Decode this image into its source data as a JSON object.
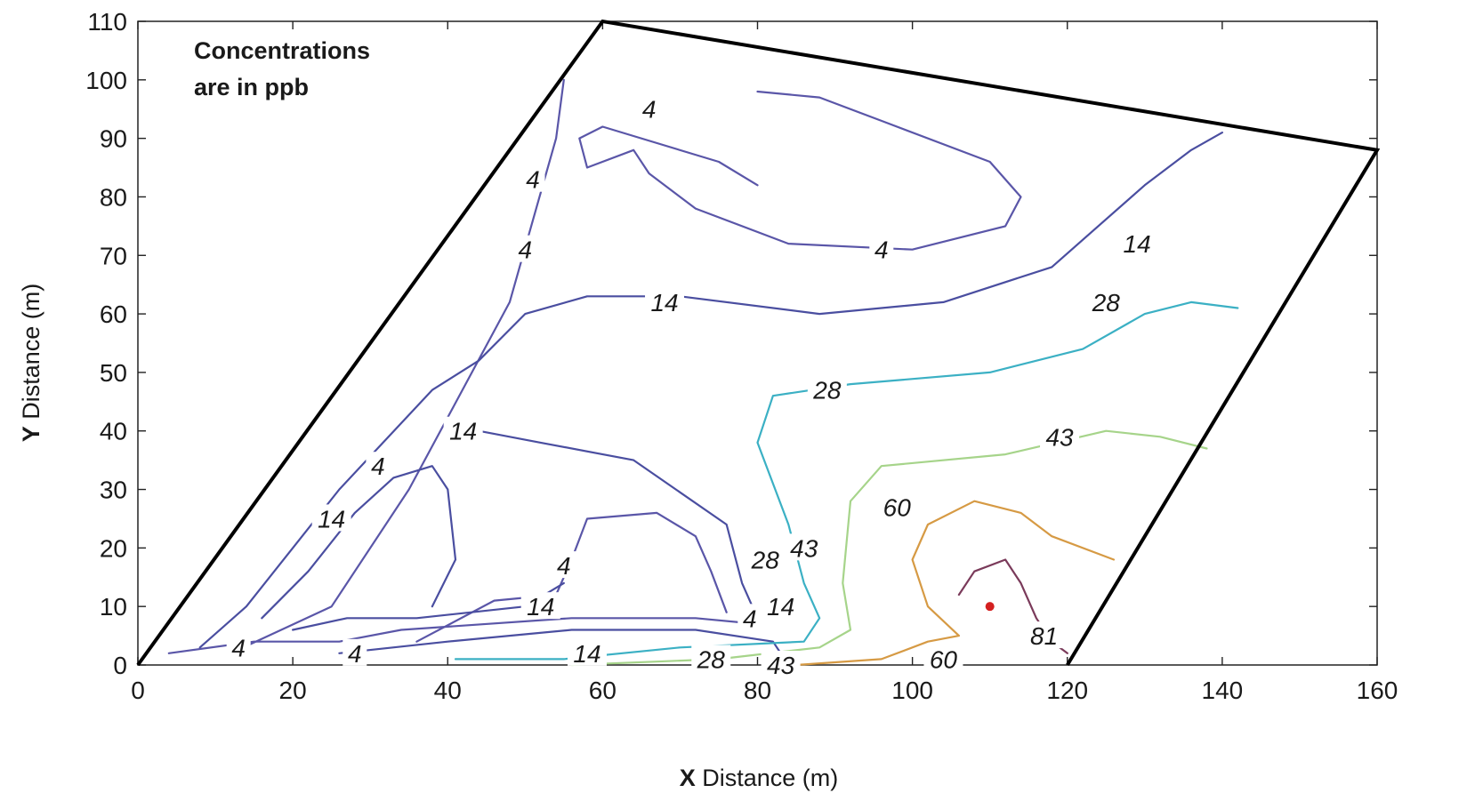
{
  "chart_data": {
    "type": "contour",
    "xlabel_bold": "X",
    "xlabel_rest": " Distance (m)",
    "ylabel_bold": "Y",
    "ylabel_rest": " Distance (m)",
    "xlim": [
      0,
      160
    ],
    "ylim": [
      0,
      110
    ],
    "xticks": [
      0,
      20,
      40,
      60,
      80,
      100,
      120,
      140,
      160
    ],
    "yticks": [
      0,
      10,
      20,
      30,
      40,
      50,
      60,
      70,
      80,
      90,
      100,
      110
    ],
    "annotation": [
      "Concentrations",
      "are in ppb"
    ],
    "grid": false,
    "domain_boundary": [
      [
        0,
        0
      ],
      [
        60,
        110
      ],
      [
        160,
        88
      ],
      [
        120,
        0
      ]
    ],
    "source_point": {
      "x": 110,
      "y": 10,
      "color": "#d42020"
    },
    "levels": [
      {
        "value": 4,
        "label": "4",
        "color": "#5a56a8"
      },
      {
        "value": 14,
        "label": "14",
        "color": "#4a4ea0"
      },
      {
        "value": 28,
        "label": "28",
        "color": "#3bb0c4"
      },
      {
        "value": 43,
        "label": "43",
        "color": "#a6d48a"
      },
      {
        "value": 60,
        "label": "60",
        "color": "#d69a44"
      },
      {
        "value": 81,
        "label": "81",
        "color": "#7a3a5a"
      }
    ],
    "contours": [
      {
        "level": "4",
        "points": [
          [
            12,
            2
          ],
          [
            25,
            10
          ],
          [
            35,
            30
          ],
          [
            48,
            62
          ],
          [
            54,
            90
          ],
          [
            55,
            100
          ]
        ]
      },
      {
        "level": "4",
        "points": [
          [
            80,
            82
          ],
          [
            75,
            86
          ],
          [
            60,
            92
          ],
          [
            57,
            90
          ],
          [
            58,
            85
          ],
          [
            64,
            88
          ],
          [
            66,
            84
          ],
          [
            72,
            78
          ],
          [
            84,
            72
          ],
          [
            100,
            71
          ],
          [
            112,
            75
          ],
          [
            114,
            80
          ],
          [
            110,
            86
          ],
          [
            96,
            93
          ],
          [
            88,
            97
          ],
          [
            80,
            98
          ]
        ]
      },
      {
        "level": "4",
        "points": [
          [
            4,
            2
          ],
          [
            15,
            4
          ],
          [
            22,
            4
          ],
          [
            26,
            4
          ],
          [
            34,
            6
          ],
          [
            56,
            8
          ],
          [
            72,
            8
          ],
          [
            80,
            7
          ]
        ]
      },
      {
        "level": "4",
        "points": [
          [
            36,
            4
          ],
          [
            46,
            11
          ],
          [
            54,
            12
          ],
          [
            56,
            18
          ],
          [
            58,
            25
          ],
          [
            67,
            26
          ],
          [
            72,
            22
          ],
          [
            74,
            16
          ],
          [
            76,
            9
          ]
        ]
      },
      {
        "level": "14",
        "points": [
          [
            8,
            3
          ],
          [
            14,
            10
          ],
          [
            20,
            20
          ],
          [
            26,
            30
          ],
          [
            38,
            47
          ],
          [
            44,
            52
          ],
          [
            50,
            60
          ],
          [
            58,
            63
          ],
          [
            70,
            63
          ],
          [
            88,
            60
          ],
          [
            104,
            62
          ],
          [
            118,
            68
          ],
          [
            130,
            82
          ],
          [
            136,
            88
          ],
          [
            140,
            91
          ]
        ]
      },
      {
        "level": "14",
        "points": [
          [
            20,
            6
          ],
          [
            27,
            8
          ],
          [
            36,
            8
          ],
          [
            50,
            10
          ],
          [
            55,
            14
          ]
        ]
      },
      {
        "level": "14",
        "points": [
          [
            16,
            8
          ],
          [
            22,
            16
          ],
          [
            28,
            26
          ],
          [
            33,
            32
          ],
          [
            38,
            34
          ],
          [
            40,
            30
          ],
          [
            41,
            18
          ],
          [
            38,
            10
          ]
        ]
      },
      {
        "level": "14",
        "points": [
          [
            26,
            2
          ],
          [
            40,
            4
          ],
          [
            56,
            6
          ],
          [
            72,
            6
          ],
          [
            82,
            4
          ],
          [
            84,
            0
          ]
        ]
      },
      {
        "level": "14",
        "points": [
          [
            44,
            40
          ],
          [
            52,
            38
          ],
          [
            64,
            35
          ],
          [
            76,
            24
          ],
          [
            78,
            14
          ],
          [
            80,
            8
          ]
        ]
      },
      {
        "level": "28",
        "points": [
          [
            41,
            1
          ],
          [
            55,
            1
          ],
          [
            70,
            3
          ],
          [
            86,
            4
          ],
          [
            88,
            8
          ],
          [
            86,
            14
          ],
          [
            84,
            24
          ],
          [
            80,
            38
          ],
          [
            82,
            46
          ],
          [
            92,
            48
          ],
          [
            110,
            50
          ],
          [
            122,
            54
          ],
          [
            130,
            60
          ],
          [
            136,
            62
          ],
          [
            142,
            61
          ]
        ]
      },
      {
        "level": "43",
        "points": [
          [
            56,
            0
          ],
          [
            75,
            1
          ],
          [
            88,
            3
          ],
          [
            92,
            6
          ],
          [
            91,
            14
          ],
          [
            92,
            28
          ],
          [
            96,
            34
          ],
          [
            112,
            36
          ],
          [
            125,
            40
          ],
          [
            132,
            39
          ],
          [
            138,
            37
          ]
        ]
      },
      {
        "level": "60",
        "points": [
          [
            85,
            0
          ],
          [
            96,
            1
          ],
          [
            102,
            4
          ],
          [
            106,
            5
          ],
          [
            102,
            10
          ],
          [
            100,
            18
          ],
          [
            102,
            24
          ],
          [
            108,
            28
          ],
          [
            114,
            26
          ],
          [
            118,
            22
          ],
          [
            126,
            18
          ]
        ]
      },
      {
        "level": "81",
        "points": [
          [
            106,
            12
          ],
          [
            108,
            16
          ],
          [
            112,
            18
          ],
          [
            114,
            14
          ],
          [
            116,
            8
          ],
          [
            118,
            4
          ],
          [
            120,
            2
          ]
        ]
      }
    ],
    "contour_labels": [
      {
        "text": "4",
        "x": 66,
        "y": 95
      },
      {
        "text": "4",
        "x": 51,
        "y": 83
      },
      {
        "text": "4",
        "x": 96,
        "y": 71
      },
      {
        "text": "4",
        "x": 50,
        "y": 71
      },
      {
        "text": "4",
        "x": 31,
        "y": 34
      },
      {
        "text": "4",
        "x": 55,
        "y": 17
      },
      {
        "text": "4",
        "x": 79,
        "y": 8
      },
      {
        "text": "4",
        "x": 13,
        "y": 3
      },
      {
        "text": "4",
        "x": 28,
        "y": 2
      },
      {
        "text": "14",
        "x": 129,
        "y": 72
      },
      {
        "text": "14",
        "x": 68,
        "y": 62
      },
      {
        "text": "14",
        "x": 42,
        "y": 40
      },
      {
        "text": "14",
        "x": 25,
        "y": 25
      },
      {
        "text": "14",
        "x": 52,
        "y": 10
      },
      {
        "text": "14",
        "x": 83,
        "y": 10
      },
      {
        "text": "14",
        "x": 58,
        "y": 2
      },
      {
        "text": "28",
        "x": 125,
        "y": 62
      },
      {
        "text": "28",
        "x": 89,
        "y": 47
      },
      {
        "text": "28",
        "x": 81,
        "y": 18
      },
      {
        "text": "28",
        "x": 74,
        "y": 1
      },
      {
        "text": "43",
        "x": 119,
        "y": 39
      },
      {
        "text": "43",
        "x": 86,
        "y": 20
      },
      {
        "text": "43",
        "x": 83,
        "y": 0
      },
      {
        "text": "60",
        "x": 98,
        "y": 27
      },
      {
        "text": "60",
        "x": 104,
        "y": 1
      },
      {
        "text": "81",
        "x": 117,
        "y": 5
      }
    ]
  }
}
